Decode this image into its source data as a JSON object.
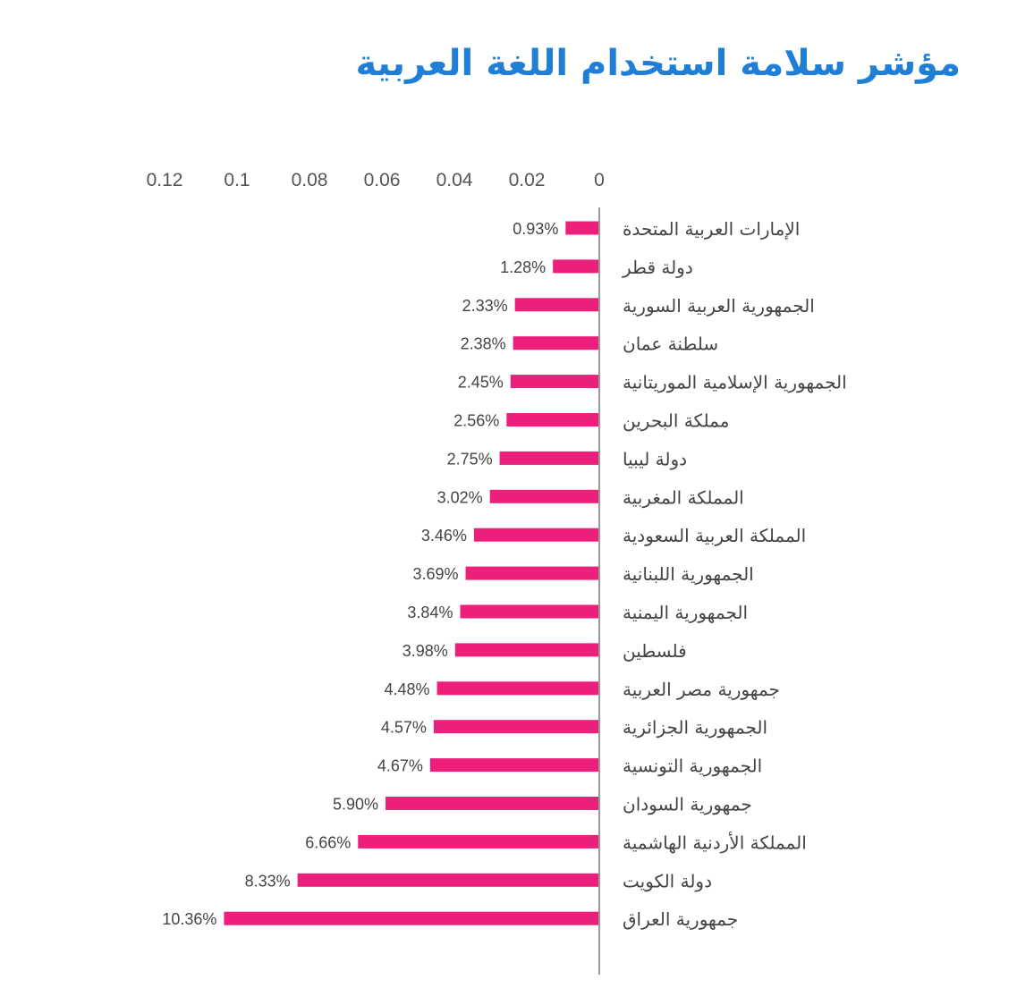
{
  "title": "مؤشر سلامة استخدام اللغة العربية",
  "colors": {
    "bar": "#ec1f7a",
    "title": "#1f7fd6",
    "axis": "#9a9a9a"
  },
  "chart_data": {
    "type": "bar",
    "orientation": "horizontal",
    "title": "مؤشر سلامة استخدام اللغة العربية",
    "xlim": [
      0,
      0.12
    ],
    "x_reversed": true,
    "x_ticks": [
      "0",
      "0.02",
      "0.04",
      "0.06",
      "0.08",
      "0.1",
      "0.12"
    ],
    "x_tick_values": [
      0,
      0.02,
      0.04,
      0.06,
      0.08,
      0.1,
      0.12
    ],
    "categories": [
      "الإمارات العربية المتحدة",
      "دولة قطر",
      "الجمهورية العربية السورية",
      "سلطنة عمان",
      "الجمهورية الإسلامية الموريتانية",
      "مملكة البحرين",
      "دولة ليبيا",
      "المملكة المغربية",
      "المملكة العربية السعودية",
      "الجمهورية اللبنانية",
      "الجمهورية اليمنية",
      "فلسطين",
      "جمهورية مصر العربية",
      "الجمهورية الجزائرية",
      "الجمهورية التونسية",
      "جمهورية السودان",
      "المملكة الأردنية الهاشمية",
      "دولة الكويت",
      "جمهورية العراق"
    ],
    "values": [
      0.0093,
      0.0128,
      0.0233,
      0.0238,
      0.0245,
      0.0256,
      0.0275,
      0.0302,
      0.0346,
      0.0369,
      0.0384,
      0.0398,
      0.0448,
      0.0457,
      0.0467,
      0.059,
      0.0666,
      0.0833,
      0.1036
    ],
    "value_labels": [
      "0.93%",
      "1.28%",
      "2.33%",
      "2.38%",
      "2.45%",
      "2.56%",
      "2.75%",
      "3.02%",
      "3.46%",
      "3.69%",
      "3.84%",
      "3.98%",
      "4.48%",
      "4.57%",
      "4.67%",
      "5.90%",
      "6.66%",
      "8.33%",
      "10.36%"
    ]
  }
}
